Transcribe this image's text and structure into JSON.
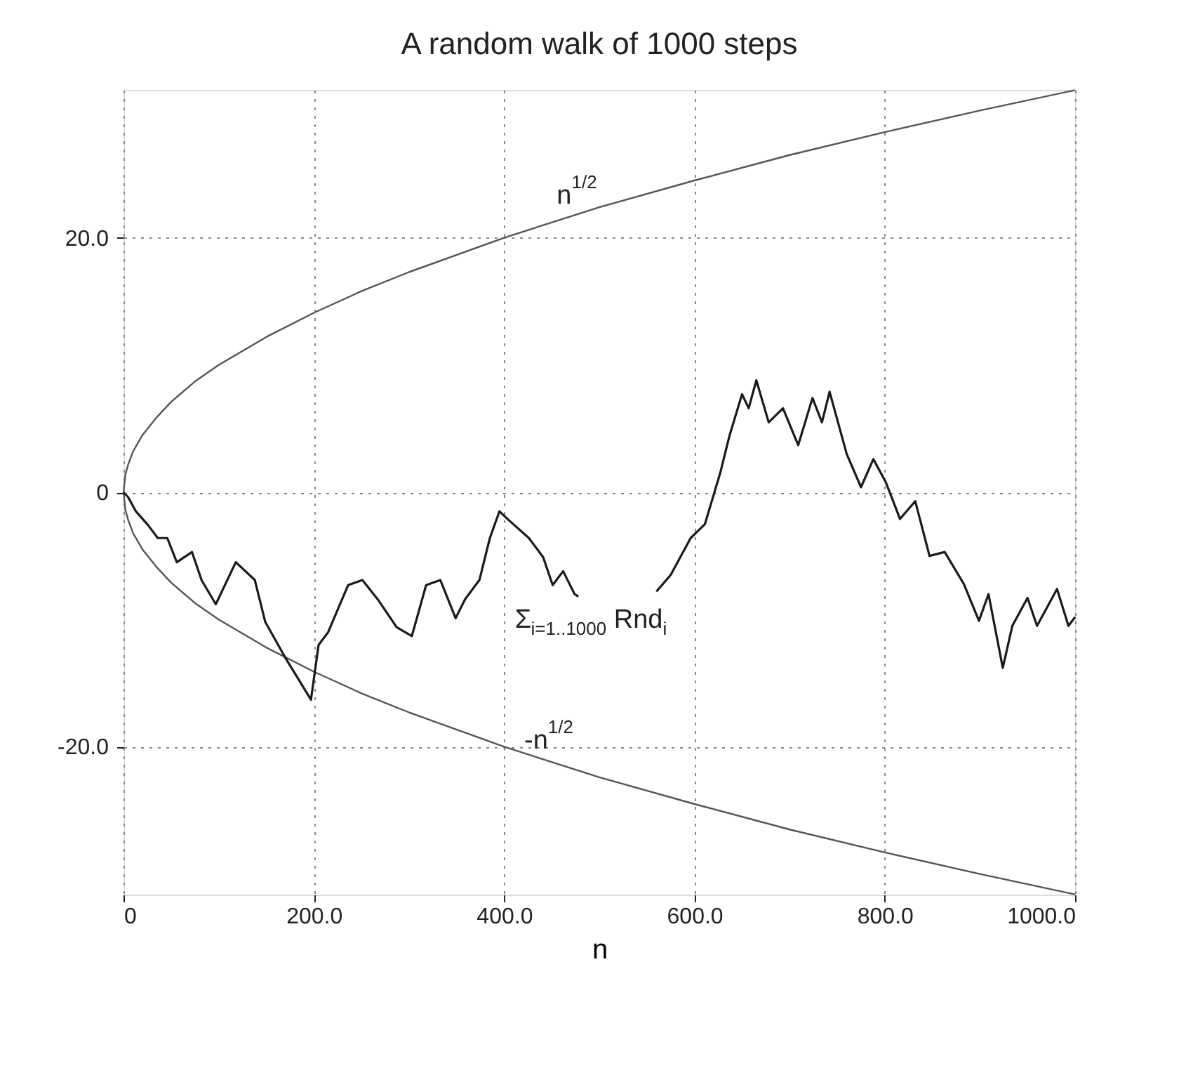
{
  "chart_data": {
    "type": "line",
    "title": "A random walk of 1000 steps",
    "xlabel": "n",
    "xlim": [
      0,
      1000
    ],
    "ylim": [
      -31.62,
      31.62
    ],
    "xticks": [
      0,
      {
        "value": 200,
        "label": "200.0"
      },
      {
        "value": 400,
        "label": "400.0"
      },
      {
        "value": 600,
        "label": "600.0"
      },
      {
        "value": 800,
        "label": "800.0"
      },
      {
        "value": 1000,
        "label": "1000.0"
      }
    ],
    "yticks": [
      {
        "value": -20,
        "label": "-20.0"
      },
      0,
      {
        "value": 20,
        "label": "20.0"
      }
    ],
    "grid": true,
    "line_style": "solid",
    "marker": "none",
    "series": [
      {
        "color": "#555555",
        "x": [
          1000,
          900,
          800,
          700,
          600,
          500,
          400,
          300,
          250,
          200,
          150,
          100,
          75,
          50,
          35,
          20,
          10,
          5,
          2,
          0,
          2,
          5,
          10,
          20,
          35,
          50,
          75,
          100,
          150,
          200,
          250,
          300,
          400,
          500,
          600,
          700,
          800,
          900,
          1000
        ],
        "values": [
          31.6,
          30,
          28.3,
          26.5,
          24.5,
          22.4,
          20,
          17.3,
          15.8,
          14.1,
          12.2,
          10,
          8.7,
          7.1,
          5.9,
          4.5,
          3.2,
          2.2,
          1.4,
          0,
          -1.4,
          -2.2,
          -3.2,
          -4.5,
          -5.9,
          -7.1,
          -8.7,
          -10,
          -12.2,
          -14.1,
          -15.8,
          -17.3,
          -20,
          -22.4,
          -24.5,
          -26.5,
          -28.3,
          -30,
          -31.6
        ]
      },
      {
        "color": "#1a1a1a",
        "x": [
          0,
          5,
          13,
          26,
          36,
          46,
          56,
          72,
          82,
          97,
          118,
          138,
          149,
          170,
          197,
          205,
          215,
          236,
          251,
          267,
          287,
          303,
          318,
          333,
          349,
          359,
          374,
          385,
          395,
          405,
          426,
          441,
          451,
          462,
          474,
          478,
          520,
          560,
          575,
          596,
          611,
          627,
          637,
          650,
          657,
          665,
          678,
          693,
          709,
          724,
          734,
          742,
          760,
          775,
          788,
          801,
          816,
          832,
          847,
          863,
          883,
          899,
          909,
          924,
          934,
          950,
          960,
          981,
          993,
          1000
        ],
        "values": [
          0,
          -0.4,
          -1.5,
          -2.6,
          -3.6,
          -3.6,
          -5.5,
          -4.7,
          -6.9,
          -8.8,
          -5.5,
          -6.9,
          -10.2,
          -13,
          -16.3,
          -12,
          -11,
          -7.3,
          -6.9,
          -8.4,
          -10.6,
          -11.3,
          -7.3,
          -6.9,
          -9.9,
          -8.4,
          -6.9,
          -3.6,
          -1.5,
          -2.2,
          -3.6,
          -5.1,
          -7.3,
          -6.2,
          -8,
          -8.2,
          null,
          -7.8,
          -6.5,
          -3.6,
          -2.5,
          1.5,
          4.5,
          7.7,
          6.6,
          8.8,
          5.5,
          6.6,
          3.7,
          7.4,
          5.5,
          7.9,
          3,
          0.4,
          2.6,
          0.8,
          -2.1,
          -0.7,
          -5,
          -4.7,
          -7.2,
          -10.1,
          -8,
          -13.8,
          -10.5,
          -8.3,
          -10.5,
          -7.6,
          -10.5,
          -9.8
        ]
      }
    ],
    "annotations": [
      "n$^{1/2}$",
      "-n$^{1/2}$",
      "Σ$_{i=1..1000}$ Rnd$_{i}$"
    ]
  }
}
